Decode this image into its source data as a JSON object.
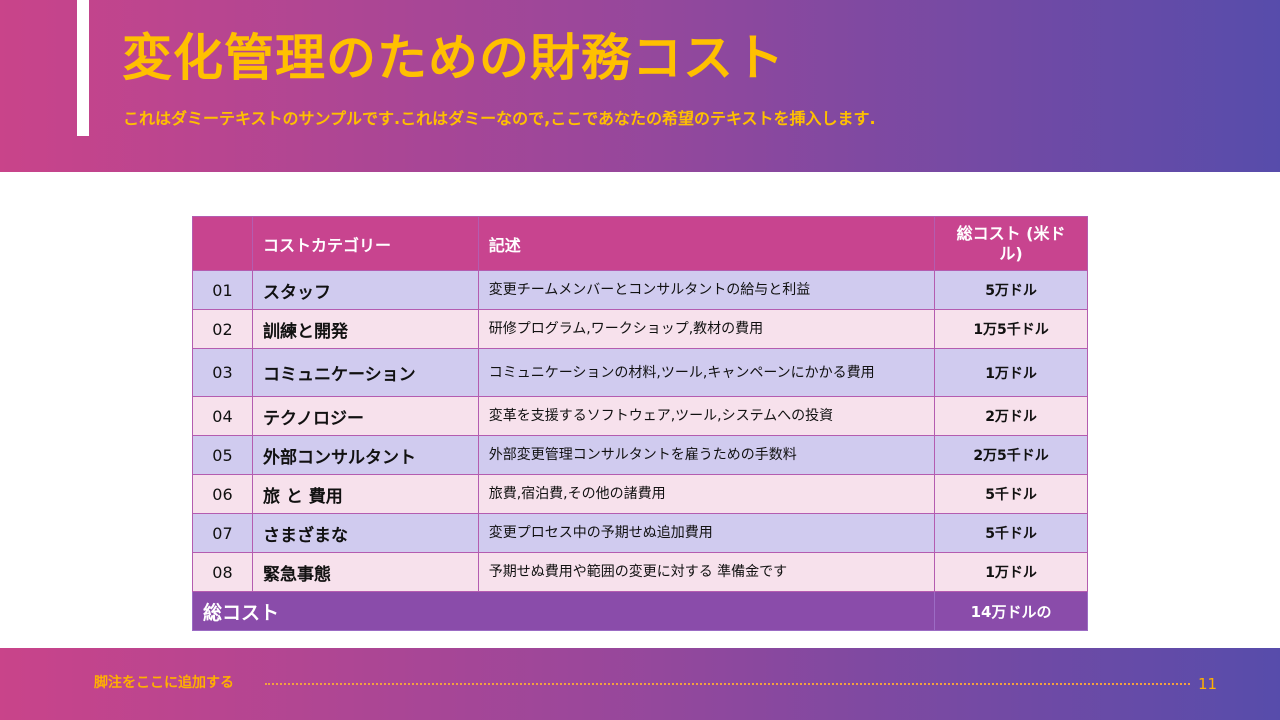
{
  "header": {
    "title": "変化管理のための財務コスト",
    "subtitle": "これはダミーテキストのサンプルです.これはダミーなので,ここであなたの希望のテキストを挿入します."
  },
  "table": {
    "columns": [
      "",
      "コストカテゴリー",
      "記述",
      "総コスト (米ドル)"
    ],
    "rows": [
      {
        "num": "01",
        "category": "スタッフ",
        "description": "変更チームメンバーとコンサルタントの給与と利益",
        "cost": "5万ドル"
      },
      {
        "num": "02",
        "category": "訓練と開発",
        "description": "研修プログラム,ワークショップ,教材の費用",
        "cost": "1万5千ドル"
      },
      {
        "num": "03",
        "category": "コミュニケーション",
        "description": "コミュニケーションの材料,ツール,キャンペーンにかかる費用",
        "cost": "1万ドル"
      },
      {
        "num": "04",
        "category": "テクノロジー",
        "description": "変革を支援するソフトウェア,ツール,システムへの投資",
        "cost": "2万ドル"
      },
      {
        "num": "05",
        "category": "外部コンサルタント",
        "description": "外部変更管理コンサルタントを雇うための手数料",
        "cost": "2万5千ドル"
      },
      {
        "num": "06",
        "category": "旅 と 費用",
        "description": "旅費,宿泊費,その他の諸費用",
        "cost": "5千ドル"
      },
      {
        "num": "07",
        "category": "さまざまな",
        "description": "変更プロセス中の予期せぬ追加費用",
        "cost": "5千ドル"
      },
      {
        "num": "08",
        "category": "緊急事態",
        "description": "予期せぬ費用や範囲の変更に対する 準備金です",
        "cost": "1万ドル"
      }
    ],
    "total": {
      "label": "総コスト",
      "value": "14万ドルの"
    }
  },
  "footer": {
    "note": "脚注をここに追加する",
    "page": "11"
  },
  "colors": {
    "accent": "#FFC000",
    "header_row": "#C8448F",
    "total_row": "#8A4CAA",
    "row_odd": "#D0CBEF",
    "row_even": "#F7E1EC"
  }
}
